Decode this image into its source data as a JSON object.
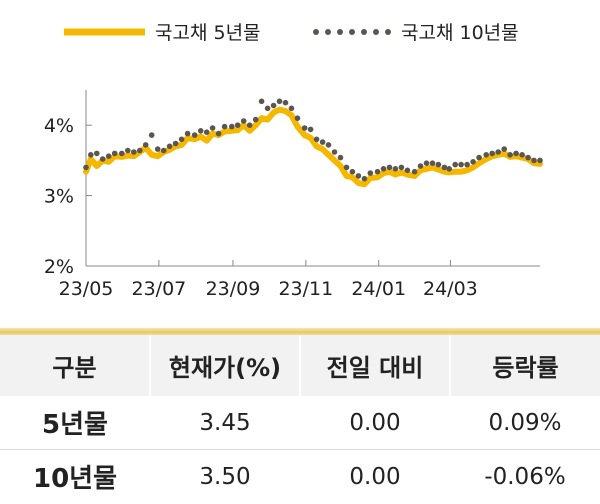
{
  "chart_data": {
    "type": "line",
    "legend_position": "top",
    "grid": false,
    "x_labels": [
      "23/05",
      "23/07",
      "23/09",
      "23/11",
      "24/01",
      "24/03"
    ],
    "y_ticks": [
      "2%",
      "3%",
      "4%"
    ],
    "ylim": [
      2,
      4.5
    ],
    "series": [
      {
        "name": "국고채 5년물",
        "style": "solid",
        "color": "#f5b800",
        "x": [
          "2023-05-01",
          "2023-05-05",
          "2023-05-10",
          "2023-05-15",
          "2023-05-20",
          "2023-05-25",
          "2023-05-31",
          "2023-06-05",
          "2023-06-10",
          "2023-06-15",
          "2023-06-20",
          "2023-06-25",
          "2023-06-30",
          "2023-07-05",
          "2023-07-10",
          "2023-07-15",
          "2023-07-20",
          "2023-07-25",
          "2023-07-31",
          "2023-08-05",
          "2023-08-10",
          "2023-08-15",
          "2023-08-20",
          "2023-08-25",
          "2023-08-31",
          "2023-09-05",
          "2023-09-10",
          "2023-09-15",
          "2023-09-20",
          "2023-09-25",
          "2023-09-30",
          "2023-10-05",
          "2023-10-10",
          "2023-10-15",
          "2023-10-20",
          "2023-10-25",
          "2023-10-31",
          "2023-11-05",
          "2023-11-10",
          "2023-11-15",
          "2023-11-20",
          "2023-11-25",
          "2023-11-30",
          "2023-12-05",
          "2023-12-10",
          "2023-12-15",
          "2023-12-20",
          "2023-12-25",
          "2023-12-31",
          "2024-01-05",
          "2024-01-10",
          "2024-01-15",
          "2024-01-20",
          "2024-01-25",
          "2024-01-31",
          "2024-02-05",
          "2024-02-10",
          "2024-02-15",
          "2024-02-20",
          "2024-02-25",
          "2024-02-29",
          "2024-03-05",
          "2024-03-10",
          "2024-03-15",
          "2024-03-20",
          "2024-03-25",
          "2024-03-31",
          "2024-04-05",
          "2024-04-10",
          "2024-04-15",
          "2024-04-20",
          "2024-04-25",
          "2024-04-30",
          "2024-05-05",
          "2024-05-10",
          "2024-05-15"
        ],
        "values": [
          3.34,
          3.52,
          3.42,
          3.5,
          3.48,
          3.56,
          3.55,
          3.57,
          3.56,
          3.62,
          3.68,
          3.58,
          3.56,
          3.62,
          3.65,
          3.7,
          3.72,
          3.82,
          3.8,
          3.84,
          3.78,
          3.88,
          3.86,
          3.91,
          3.92,
          3.93,
          4.0,
          3.92,
          4.0,
          4.1,
          4.08,
          4.18,
          4.22,
          4.2,
          4.14,
          3.98,
          3.86,
          3.82,
          3.7,
          3.66,
          3.58,
          3.5,
          3.42,
          3.28,
          3.26,
          3.18,
          3.16,
          3.25,
          3.26,
          3.32,
          3.34,
          3.3,
          3.33,
          3.3,
          3.28,
          3.36,
          3.38,
          3.4,
          3.37,
          3.34,
          3.33,
          3.34,
          3.34,
          3.36,
          3.4,
          3.46,
          3.52,
          3.56,
          3.58,
          3.6,
          3.55,
          3.56,
          3.54,
          3.52,
          3.46,
          3.45
        ]
      },
      {
        "name": "국고채 10년물",
        "style": "dotted",
        "color": "#5c5653",
        "x": [
          "2023-05-01",
          "2023-05-05",
          "2023-05-10",
          "2023-05-15",
          "2023-05-20",
          "2023-05-25",
          "2023-05-31",
          "2023-06-05",
          "2023-06-10",
          "2023-06-15",
          "2023-06-20",
          "2023-06-25",
          "2023-06-30",
          "2023-07-05",
          "2023-07-10",
          "2023-07-15",
          "2023-07-20",
          "2023-07-25",
          "2023-07-31",
          "2023-08-05",
          "2023-08-10",
          "2023-08-15",
          "2023-08-20",
          "2023-08-25",
          "2023-08-31",
          "2023-09-05",
          "2023-09-10",
          "2023-09-15",
          "2023-09-20",
          "2023-09-25",
          "2023-09-30",
          "2023-10-05",
          "2023-10-10",
          "2023-10-15",
          "2023-10-20",
          "2023-10-25",
          "2023-10-31",
          "2023-11-05",
          "2023-11-10",
          "2023-11-15",
          "2023-11-20",
          "2023-11-25",
          "2023-11-30",
          "2023-12-05",
          "2023-12-10",
          "2023-12-15",
          "2023-12-20",
          "2023-12-25",
          "2023-12-31",
          "2024-01-05",
          "2024-01-10",
          "2024-01-15",
          "2024-01-20",
          "2024-01-25",
          "2024-01-31",
          "2024-02-05",
          "2024-02-10",
          "2024-02-15",
          "2024-02-20",
          "2024-02-25",
          "2024-02-29",
          "2024-03-05",
          "2024-03-10",
          "2024-03-15",
          "2024-03-20",
          "2024-03-25",
          "2024-03-31",
          "2024-04-05",
          "2024-04-10",
          "2024-04-15",
          "2024-04-20",
          "2024-04-25",
          "2024-04-30",
          "2024-05-05",
          "2024-05-10",
          "2024-05-15"
        ],
        "values": [
          3.4,
          3.58,
          3.6,
          3.52,
          3.56,
          3.6,
          3.6,
          3.64,
          3.62,
          3.64,
          3.72,
          3.86,
          3.66,
          3.64,
          3.7,
          3.74,
          3.8,
          3.88,
          3.86,
          3.92,
          3.9,
          3.96,
          3.88,
          3.98,
          3.98,
          4.0,
          4.06,
          4.0,
          4.08,
          4.34,
          4.24,
          4.28,
          4.34,
          4.32,
          4.24,
          4.1,
          3.96,
          3.94,
          3.8,
          3.76,
          3.72,
          3.62,
          3.54,
          3.4,
          3.34,
          3.28,
          3.24,
          3.32,
          3.34,
          3.38,
          3.4,
          3.38,
          3.4,
          3.36,
          3.34,
          3.42,
          3.46,
          3.46,
          3.44,
          3.4,
          3.38,
          3.44,
          3.44,
          3.44,
          3.48,
          3.54,
          3.58,
          3.6,
          3.62,
          3.66,
          3.58,
          3.6,
          3.58,
          3.54,
          3.5,
          3.5
        ]
      }
    ]
  },
  "table": {
    "headers": [
      "구분",
      "현재가(%)",
      "전일 대비",
      "등락률"
    ],
    "rows": [
      [
        "5년물",
        "3.45",
        "0.00",
        "0.09%"
      ],
      [
        "10년물",
        "3.50",
        "0.00",
        "-0.06%"
      ]
    ]
  }
}
